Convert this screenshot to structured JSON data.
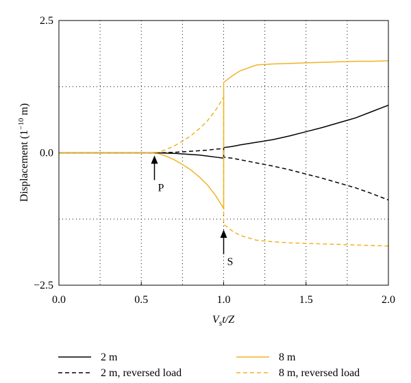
{
  "chart_data": {
    "type": "line",
    "xlabel": {
      "main": "V",
      "sub": "s",
      "rest": "t/Z"
    },
    "ylabel": {
      "main": "Displacement (1",
      "sup": "−10",
      "rest": " m)"
    },
    "x": [
      0,
      0.2,
      0.4,
      0.55,
      0.6,
      0.65,
      0.7,
      0.75,
      0.8,
      0.85,
      0.9,
      0.95,
      1.0,
      1.0,
      1.05,
      1.1,
      1.2,
      1.3,
      1.4,
      1.5,
      1.6,
      1.7,
      1.8,
      1.9,
      2.0
    ],
    "series": [
      {
        "name": "2 m",
        "color": "#000000",
        "dash": false,
        "values": [
          0,
          0,
          0,
          0,
          0,
          -0.005,
          -0.01,
          -0.02,
          -0.03,
          -0.04,
          -0.06,
          -0.08,
          -0.1,
          0.1,
          0.12,
          0.15,
          0.2,
          0.25,
          0.32,
          0.4,
          0.48,
          0.57,
          0.66,
          0.78,
          0.9
        ]
      },
      {
        "name": "8 m",
        "color": "#f0b323",
        "dash": false,
        "values": [
          0,
          0,
          0,
          0,
          -0.01,
          -0.06,
          -0.13,
          -0.22,
          -0.32,
          -0.45,
          -0.6,
          -0.8,
          -1.05,
          1.33,
          1.45,
          1.55,
          1.66,
          1.68,
          1.69,
          1.7,
          1.71,
          1.72,
          1.73,
          1.73,
          1.74
        ]
      },
      {
        "name": "2 m, reversed load",
        "color": "#000000",
        "dash": true,
        "values": [
          0,
          0,
          0,
          0,
          0,
          0.005,
          0.01,
          0.02,
          0.03,
          0.04,
          0.05,
          0.07,
          0.08,
          -0.08,
          -0.1,
          -0.13,
          -0.19,
          -0.25,
          -0.32,
          -0.4,
          -0.48,
          -0.57,
          -0.66,
          -0.77,
          -0.89
        ]
      },
      {
        "name": "8 m, reversed load",
        "color": "#f0b323",
        "dash": true,
        "values": [
          0,
          0,
          0,
          0,
          0.01,
          0.06,
          0.13,
          0.22,
          0.32,
          0.45,
          0.6,
          0.8,
          1.05,
          -1.35,
          -1.47,
          -1.56,
          -1.65,
          -1.68,
          -1.7,
          -1.71,
          -1.72,
          -1.73,
          -1.74,
          -1.75,
          -1.76
        ]
      }
    ],
    "xlim": [
      0,
      2
    ],
    "ylim": [
      -2.5,
      2.5
    ],
    "xticks": [
      {
        "value": 0,
        "label": "0.0"
      },
      0.5,
      {
        "value": 1,
        "label": "1.0"
      },
      1.5,
      {
        "value": 2,
        "label": "2.0"
      }
    ],
    "yticks": [
      {
        "value": -2.5,
        "label": "−2.5"
      },
      {
        "value": 0,
        "label": "0.0"
      },
      2.5
    ],
    "xgrid": [
      0.25,
      0.5,
      0.75,
      1,
      1.25,
      1.5,
      1.75
    ],
    "ygrid": [
      -1.25,
      1.25
    ],
    "annotations": [
      {
        "text": "P",
        "x": 0.58,
        "y": -0.05
      },
      {
        "text": "S",
        "x": 1.0,
        "y": -1.45
      }
    ]
  }
}
